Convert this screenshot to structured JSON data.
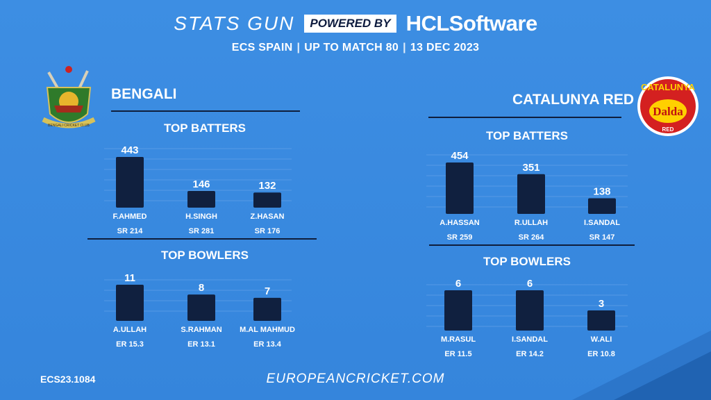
{
  "header": {
    "brand": "STATS GUN",
    "powered_by": "POWERED BY",
    "sponsor": "HCLSoftware",
    "subtitle_parts": [
      "ECS SPAIN",
      "UP TO MATCH 80",
      "13 DEC 2023"
    ]
  },
  "colors": {
    "background": "#3a8ae0",
    "bar": "#10203f",
    "rule": "#0f1e3c",
    "text": "#ffffff"
  },
  "teams": [
    {
      "name": "BENGALI",
      "logo_icon": "bengali-cricket-club-crest",
      "logo_text": "BENGALI CRICKET CLUB",
      "batters_title": "TOP BATTERS",
      "bowlers_title": "TOP BOWLERS"
    },
    {
      "name": "CATALUNYA RED",
      "logo_icon": "catalunya-red-dalda-badge",
      "logo_text": [
        "CATALUNYA",
        "Dalda",
        "RED"
      ],
      "batters_title": "TOP BATTERS",
      "bowlers_title": "TOP BOWLERS"
    }
  ],
  "chart_data": [
    {
      "type": "bar",
      "title": "TOP BATTERS",
      "team": "BENGALI",
      "categories": [
        "F.AHMED",
        "H.SINGH",
        "Z.HASAN"
      ],
      "values": [
        443,
        146,
        132
      ],
      "sublabels": [
        "SR 214",
        "SR 281",
        "SR 176"
      ],
      "grid": true
    },
    {
      "type": "bar",
      "title": "TOP BOWLERS",
      "team": "BENGALI",
      "categories": [
        "A.ULLAH",
        "S.RAHMAN",
        "M.AL MAHMUD"
      ],
      "values": [
        11,
        8,
        7
      ],
      "sublabels": [
        "ER 15.3",
        "ER 13.1",
        "ER 13.4"
      ],
      "grid": true
    },
    {
      "type": "bar",
      "title": "TOP BATTERS",
      "team": "CATALUNYA RED",
      "categories": [
        "A.HASSAN",
        "R.ULLAH",
        "I.SANDAL"
      ],
      "values": [
        454,
        351,
        138
      ],
      "sublabels": [
        "SR 259",
        "SR 264",
        "SR 147"
      ],
      "grid": true
    },
    {
      "type": "bar",
      "title": "TOP BOWLERS",
      "team": "CATALUNYA RED",
      "categories": [
        "M.RASUL",
        "I.SANDAL",
        "W.ALI"
      ],
      "values": [
        6,
        6,
        3
      ],
      "sublabels": [
        "ER 11.5",
        "ER 14.2",
        "ER 10.8"
      ],
      "grid": true
    }
  ],
  "footer": {
    "code": "ECS23.1084",
    "website": "EUROPEANCRICKET.COM"
  }
}
